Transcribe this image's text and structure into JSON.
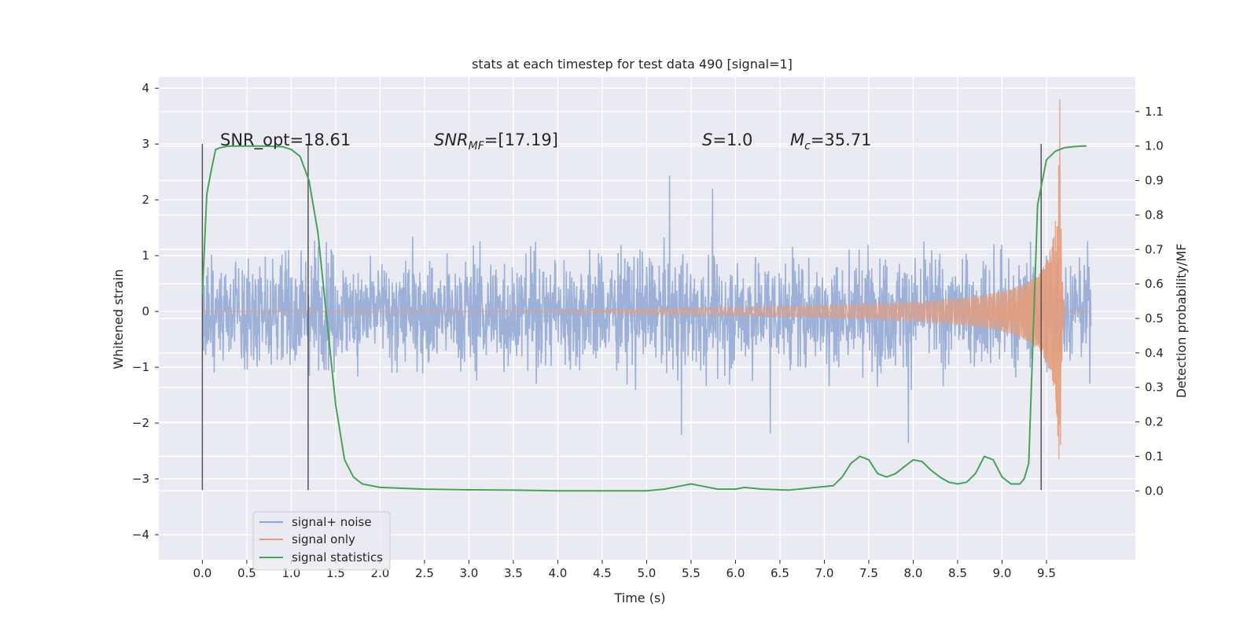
{
  "chart_data": {
    "type": "line",
    "title": "stats at each timestep for test data 490 [signal=1]",
    "xlabel": "Time (s)",
    "ylabel": "Whitened strain",
    "y2label": "Detection probability/MF",
    "xlim": [
      -0.49,
      10.5
    ],
    "ylim": [
      -4.45,
      4.2
    ],
    "y2lim": [
      -0.2,
      1.2
    ],
    "x_ticks": [
      0.0,
      0.5,
      1.0,
      1.5,
      2.0,
      2.5,
      3.0,
      3.5,
      4.0,
      4.5,
      5.0,
      5.5,
      6.0,
      6.5,
      7.0,
      7.5,
      8.0,
      8.5,
      9.0,
      9.5
    ],
    "x_tick_labels": [
      "0.0",
      "0.5",
      "1.0",
      "1.5",
      "2.0",
      "2.5",
      "3.0",
      "3.5",
      "4.0",
      "4.5",
      "5.0",
      "5.5",
      "6.0",
      "6.5",
      "7.0",
      "7.5",
      "8.0",
      "8.5",
      "9.0",
      "9.5"
    ],
    "y_ticks": [
      4,
      3,
      2,
      1,
      0,
      -1,
      -2,
      -3,
      -4
    ],
    "y_tick_labels": [
      "4",
      "3",
      "2",
      "1",
      "0",
      "−1",
      "−2",
      "−3",
      "−4"
    ],
    "y2_ticks": [
      1.1,
      1.0,
      0.9,
      0.8,
      0.7,
      0.6,
      0.5,
      0.4,
      0.3,
      0.2,
      0.1,
      0.0
    ],
    "y2_tick_labels": [
      "1.1",
      "1.0",
      "0.9",
      "0.8",
      "0.7",
      "0.6",
      "0.5",
      "0.4",
      "0.3",
      "0.2",
      "0.1",
      "0.0"
    ],
    "grid": true,
    "legend_position": "lower-left",
    "annotations": {
      "snr_opt": "SNR_opt=18.61",
      "snr_mf_main": "SNR",
      "snr_mf_sub": "MF",
      "snr_mf_value": "=[17.19]",
      "s_main": "S",
      "s_value": "=1.0",
      "mc_main": "M",
      "mc_sub": "c",
      "mc_value": "=35.71"
    },
    "vertical_lines": [
      {
        "x": 0.0,
        "ymin": -3.2,
        "ymax": 3.0
      },
      {
        "x": 1.19,
        "ymin": -3.2,
        "ymax": 3.0
      },
      {
        "x": 9.44,
        "ymin": -3.2,
        "ymax": 3.0
      }
    ],
    "series": [
      {
        "name": "signal+ noise",
        "color": "#8fa6d2",
        "style": "noise",
        "x_range": [
          0.0,
          10.0
        ],
        "note_amplitude": "envelope approx ±1.6 with spikes to ±3.6"
      },
      {
        "name": "signal only",
        "color": "#e69c7a",
        "style": "chirp",
        "x_range": [
          0.0,
          10.0
        ],
        "peak_time": 9.65,
        "peak_amplitude": 3.8
      },
      {
        "name": "signal statistics",
        "color": "#4aa15a",
        "axis": "right",
        "x": [
          0.0,
          0.05,
          0.1,
          0.15,
          0.2,
          0.3,
          0.5,
          0.7,
          0.9,
          1.0,
          1.1,
          1.2,
          1.3,
          1.4,
          1.5,
          1.6,
          1.7,
          1.8,
          2.0,
          2.5,
          3.0,
          3.5,
          4.0,
          4.5,
          5.0,
          5.2,
          5.4,
          5.5,
          5.6,
          5.8,
          6.0,
          6.1,
          6.3,
          6.6,
          6.9,
          7.1,
          7.2,
          7.3,
          7.4,
          7.5,
          7.6,
          7.7,
          7.8,
          7.9,
          8.0,
          8.1,
          8.2,
          8.3,
          8.4,
          8.5,
          8.6,
          8.7,
          8.8,
          8.9,
          9.0,
          9.1,
          9.2,
          9.25,
          9.3,
          9.35,
          9.4,
          9.5,
          9.6,
          9.7,
          9.8,
          9.9,
          9.95
        ],
        "y": [
          0.57,
          0.86,
          0.93,
          0.99,
          0.995,
          1.0,
          1.0,
          1.0,
          0.998,
          0.99,
          0.97,
          0.9,
          0.75,
          0.5,
          0.25,
          0.09,
          0.04,
          0.02,
          0.01,
          0.005,
          0.003,
          0.002,
          0.0,
          0.0,
          0.0,
          0.005,
          0.015,
          0.02,
          0.015,
          0.005,
          0.005,
          0.01,
          0.005,
          0.002,
          0.01,
          0.015,
          0.04,
          0.08,
          0.1,
          0.09,
          0.05,
          0.04,
          0.05,
          0.07,
          0.09,
          0.085,
          0.06,
          0.04,
          0.025,
          0.02,
          0.025,
          0.05,
          0.1,
          0.09,
          0.04,
          0.02,
          0.02,
          0.035,
          0.08,
          0.45,
          0.83,
          0.96,
          0.985,
          0.995,
          0.998,
          1.0,
          1.0
        ]
      }
    ]
  }
}
